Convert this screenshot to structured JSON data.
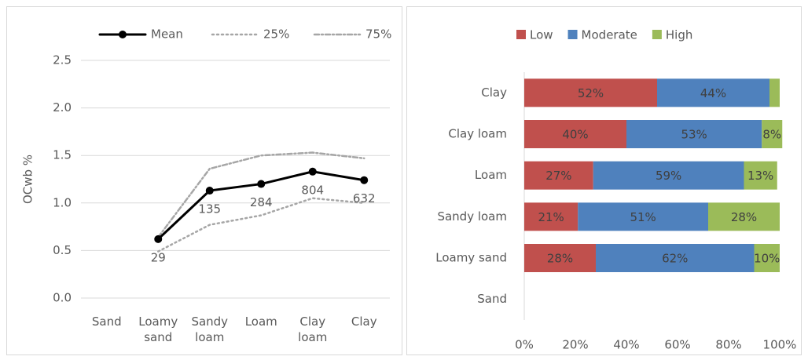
{
  "chart_data": [
    {
      "type": "line",
      "ylabel": "OCwb %",
      "categories": [
        "Sand",
        "Loamy sand",
        "Sandy loam",
        "Loam",
        "Clay loam",
        "Clay"
      ],
      "series": [
        {
          "name": "Mean",
          "color": "#000000",
          "dash": "solid",
          "markers": true,
          "values": [
            null,
            0.62,
            1.13,
            1.2,
            1.33,
            1.24
          ],
          "counts": [
            null,
            29,
            135,
            284,
            804,
            632
          ]
        },
        {
          "name": "25%",
          "color": "#a6a6a6",
          "dash": "dot",
          "markers": false,
          "values": [
            null,
            0.49,
            0.77,
            0.87,
            1.05,
            1.0
          ]
        },
        {
          "name": "75%",
          "color": "#a6a6a6",
          "dash": "dash",
          "markers": false,
          "values": [
            null,
            0.64,
            1.36,
            1.5,
            1.53,
            1.47
          ]
        }
      ],
      "ylim": [
        0,
        2.5
      ],
      "yticks": [
        {
          "value": 0,
          "label": "0.0"
        },
        0.5,
        {
          "value": 1,
          "label": "1.0"
        },
        1.5,
        {
          "value": 2,
          "label": "2.0"
        },
        2.5
      ],
      "grid": true,
      "legend": "top"
    },
    {
      "type": "stacked-barh",
      "categories": [
        "Clay",
        "Clay loam",
        "Loam",
        "Sandy loam",
        "Loamy sand",
        "Sand"
      ],
      "series": [
        {
          "name": "Low",
          "color": "#c0504d",
          "values": [
            52,
            40,
            27,
            21,
            28,
            null
          ],
          "value_labels": [
            "52%",
            "40%",
            "27%",
            "21%",
            "28%",
            null
          ]
        },
        {
          "name": "Moderate",
          "color": "#4f81bd",
          "values": [
            44,
            53,
            59,
            51,
            62,
            null
          ],
          "value_labels": [
            "44%",
            "53%",
            "59%",
            "51%",
            "62%",
            null
          ]
        },
        {
          "name": "High",
          "color": "#9bbb59",
          "values": [
            4,
            8,
            13,
            28,
            10,
            null
          ],
          "value_labels": [
            null,
            "8%",
            "13%",
            "28%",
            "10%",
            null
          ]
        }
      ],
      "xlim": [
        0,
        100
      ],
      "xticks": [
        {
          "value": 0,
          "label": "0%"
        },
        {
          "value": 20,
          "label": "20%"
        },
        {
          "value": 40,
          "label": "40%"
        },
        {
          "value": 60,
          "label": "60%"
        },
        {
          "value": 80,
          "label": "80%"
        },
        {
          "value": 100,
          "label": "100%"
        }
      ],
      "grid": false,
      "legend": "top"
    }
  ]
}
